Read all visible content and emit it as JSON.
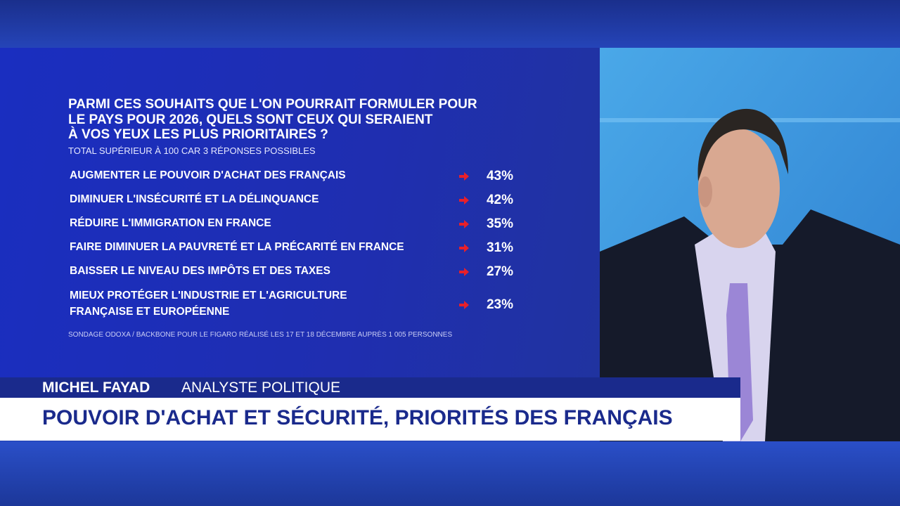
{
  "poll": {
    "question_lines": [
      "PARMI CES SOUHAITS QUE L'ON POURRAIT FORMULER POUR",
      "LE PAYS POUR 2026, QUELS SONT CEUX QUI SERAIENT",
      "À VOS YEUX LES PLUS PRIORITAIRES ?"
    ],
    "note": "TOTAL SUPÉRIEUR À 100 CAR 3 RÉPONSES POSSIBLES",
    "rows": [
      {
        "label_lines": [
          "AUGMENTER LE POUVOIR D'ACHAT DES FRANÇAIS"
        ],
        "value": "43%"
      },
      {
        "label_lines": [
          "DIMINUER L'INSÉCURITÉ ET LA DÉLINQUANCE"
        ],
        "value": "42%"
      },
      {
        "label_lines": [
          "RÉDUIRE L'IMMIGRATION EN FRANCE"
        ],
        "value": "35%"
      },
      {
        "label_lines": [
          "FAIRE DIMINUER LA PAUVRETÉ ET LA PRÉCARITÉ EN FRANCE"
        ],
        "value": "31%"
      },
      {
        "label_lines": [
          "BAISSER LE NIVEAU DES IMPÔTS ET DES TAXES"
        ],
        "value": "27%"
      },
      {
        "label_lines": [
          "MIEUX PROTÉGER L'INDUSTRIE ET L'AGRICULTURE",
          "FRANÇAISE ET EUROPÉENNE"
        ],
        "value": "23%"
      }
    ],
    "source": "SONDAGE ODOXA / BACKBONE POUR LE FIGARO RÉALISÉ LES 17 ET 18 DÉCEMBRE AUPRÈS 1 005 PERSONNES"
  },
  "lower_third": {
    "name": "MICHEL FAYAD",
    "role": "ANALYSTE POLITIQUE",
    "headline": "POUVOIR D'ACHAT ET SÉCURITÉ, PRIORITÉS DES FRANÇAIS"
  }
}
